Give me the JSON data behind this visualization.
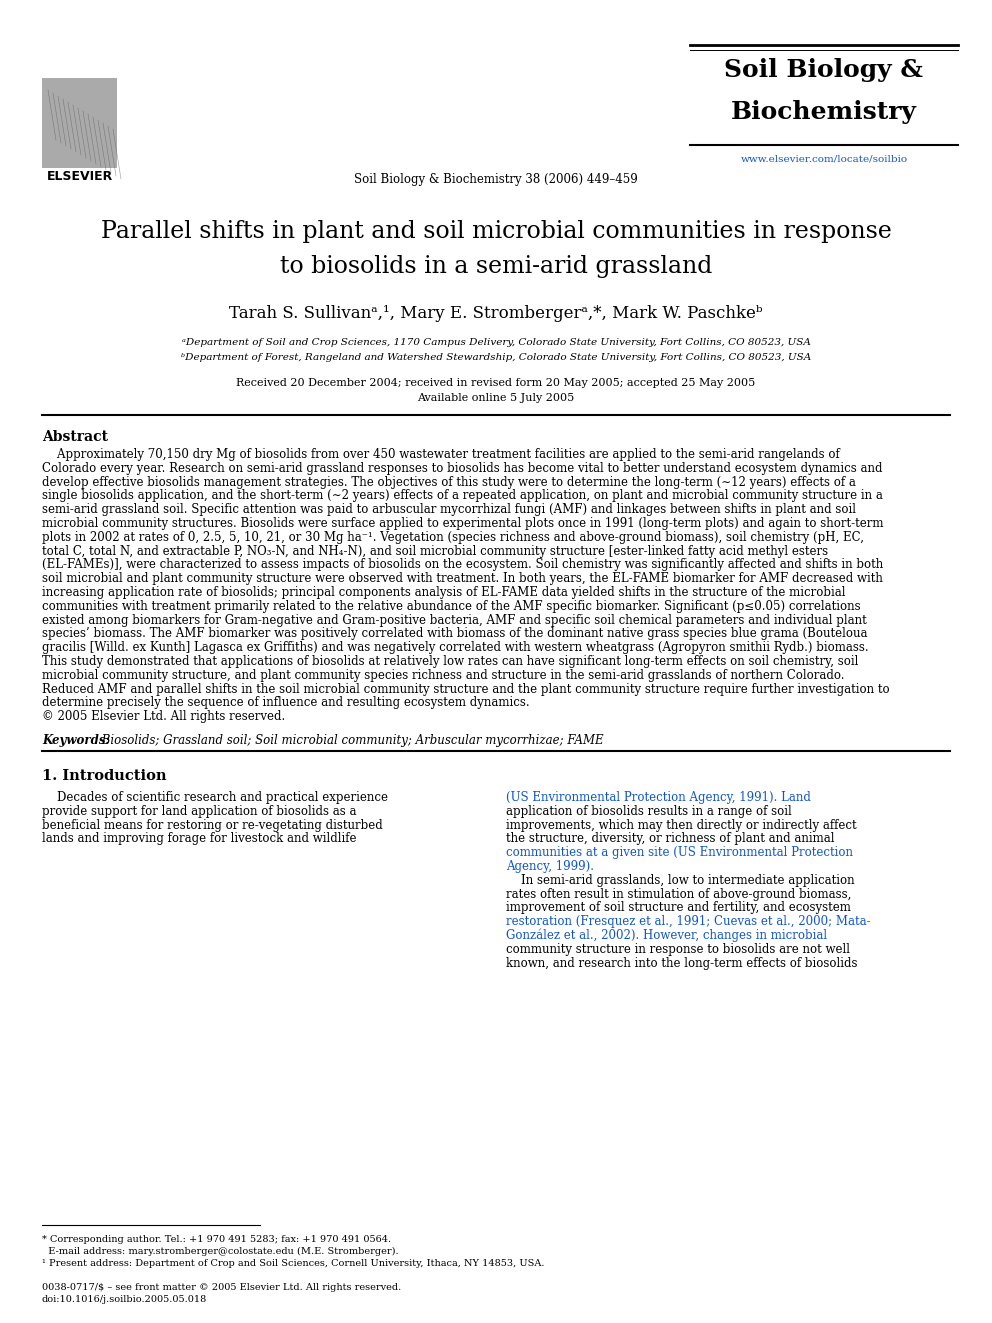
{
  "bg_color": "#ffffff",
  "journal_name_line1": "Soil Biology &",
  "journal_name_line2": "Biochemistry",
  "journal_ref": "Soil Biology & Biochemistry 38 (2006) 449–459",
  "journal_url": "www.elsevier.com/locate/soilbio",
  "elsevier_text": "ELSEVIER",
  "title_line1": "Parallel shifts in plant and soil microbial communities in response",
  "title_line2": "to biosolids in a semi-arid grassland",
  "authors": "Tarah S. Sullivanᵃ,¹, Mary E. Strombergerᵃ,*, Mark W. Paschkeᵇ",
  "affil_a": "ᵃDepartment of Soil and Crop Sciences, 1170 Campus Delivery, Colorado State University, Fort Collins, CO 80523, USA",
  "affil_b": "ᵇDepartment of Forest, Rangeland and Watershed Stewardship, Colorado State University, Fort Collins, CO 80523, USA",
  "dates": "Received 20 December 2004; received in revised form 20 May 2005; accepted 25 May 2005",
  "available": "Available online 5 July 2005",
  "abstract_heading": "Abstract",
  "abstract_lines": [
    "    Approximately 70,150 dry Mg of biosolids from over 450 wastewater treatment facilities are applied to the semi-arid rangelands of",
    "Colorado every year. Research on semi-arid grassland responses to biosolids has become vital to better understand ecosystem dynamics and",
    "develop effective biosolids management strategies. The objectives of this study were to determine the long-term (∼12 years) effects of a",
    "single biosolids application, and the short-term (∼2 years) effects of a repeated application, on plant and microbial community structure in a",
    "semi-arid grassland soil. Specific attention was paid to arbuscular mycorrhizal fungi (AMF) and linkages between shifts in plant and soil",
    "microbial community structures. Biosolids were surface applied to experimental plots once in 1991 (long-term plots) and again to short-term",
    "plots in 2002 at rates of 0, 2.5, 5, 10, 21, or 30 Mg ha⁻¹. Vegetation (species richness and above-ground biomass), soil chemistry (pH, EC,",
    "total C, total N, and extractable P, NO₃-N, and NH₄-N), and soil microbial community structure [ester-linked fatty acid methyl esters",
    "(EL-FAMEs)], were characterized to assess impacts of biosolids on the ecosystem. Soil chemistry was significantly affected and shifts in both",
    "soil microbial and plant community structure were observed with treatment. In both years, the EL-FAME biomarker for AMF decreased with",
    "increasing application rate of biosolids; principal components analysis of EL-FAME data yielded shifts in the structure of the microbial",
    "communities with treatment primarily related to the relative abundance of the AMF specific biomarker. Significant (p≤0.05) correlations",
    "existed among biomarkers for Gram-negative and Gram-positive bacteria, AMF and specific soil chemical parameters and individual plant",
    "species’ biomass. The AMF biomarker was positively correlated with biomass of the dominant native grass species blue grama (Bouteloua",
    "gracilis [Willd. ex Kunth] Lagasca ex Griffiths) and was negatively correlated with western wheatgrass (Agropyron smithii Rydb.) biomass.",
    "This study demonstrated that applications of biosolids at relatively low rates can have significant long-term effects on soil chemistry, soil",
    "microbial community structure, and plant community species richness and structure in the semi-arid grasslands of northern Colorado.",
    "Reduced AMF and parallel shifts in the soil microbial community structure and the plant community structure require further investigation to",
    "determine precisely the sequence of influence and resulting ecosystem dynamics.",
    "© 2005 Elsevier Ltd. All rights reserved."
  ],
  "keywords_label": "Keywords:",
  "keywords_text": " Biosolids; Grassland soil; Soil microbial community; Arbuscular mycorrhizae; FAME",
  "section1_heading": "1. Introduction",
  "col1_lines": [
    "    Decades of scientific research and practical experience",
    "provide support for land application of biosolids as a",
    "beneficial means for restoring or re-vegetating disturbed",
    "lands and improving forage for livestock and wildlife"
  ],
  "col2_lines": [
    "(US Environmental Protection Agency, 1991). Land",
    "application of biosolids results in a range of soil",
    "improvements, which may then directly or indirectly affect",
    "the structure, diversity, or richness of plant and animal",
    "communities at a given site (US Environmental Protection",
    "Agency, 1999).",
    "    In semi-arid grasslands, low to intermediate application",
    "rates often result in stimulation of above-ground biomass,",
    "improvement of soil structure and fertility, and ecosystem",
    "restoration (Fresquez et al., 1991; Cuevas et al., 2000; Mata-",
    "González et al., 2002). However, changes in microbial",
    "community structure in response to biosolids are not well",
    "known, and research into the long-term effects of biosolids"
  ],
  "col2_line_colors": [
    "blue",
    "black",
    "black",
    "black",
    "blue",
    "blue",
    "black",
    "black",
    "black",
    "blue",
    "blue",
    "black",
    "black"
  ],
  "footnote_star": "* Corresponding author. Tel.: +1 970 491 5283; fax: +1 970 491 0564.",
  "footnote_email": "  E-mail address: mary.stromberger@colostate.edu (M.E. Stromberger).",
  "footnote_1": "¹ Present address: Department of Crop and Soil Sciences, Cornell University, Ithaca, NY 14853, USA.",
  "issn": "0038-0717/$ – see front matter © 2005 Elsevier Ltd. All rights reserved.",
  "doi": "doi:10.1016/j.soilbio.2005.05.018"
}
